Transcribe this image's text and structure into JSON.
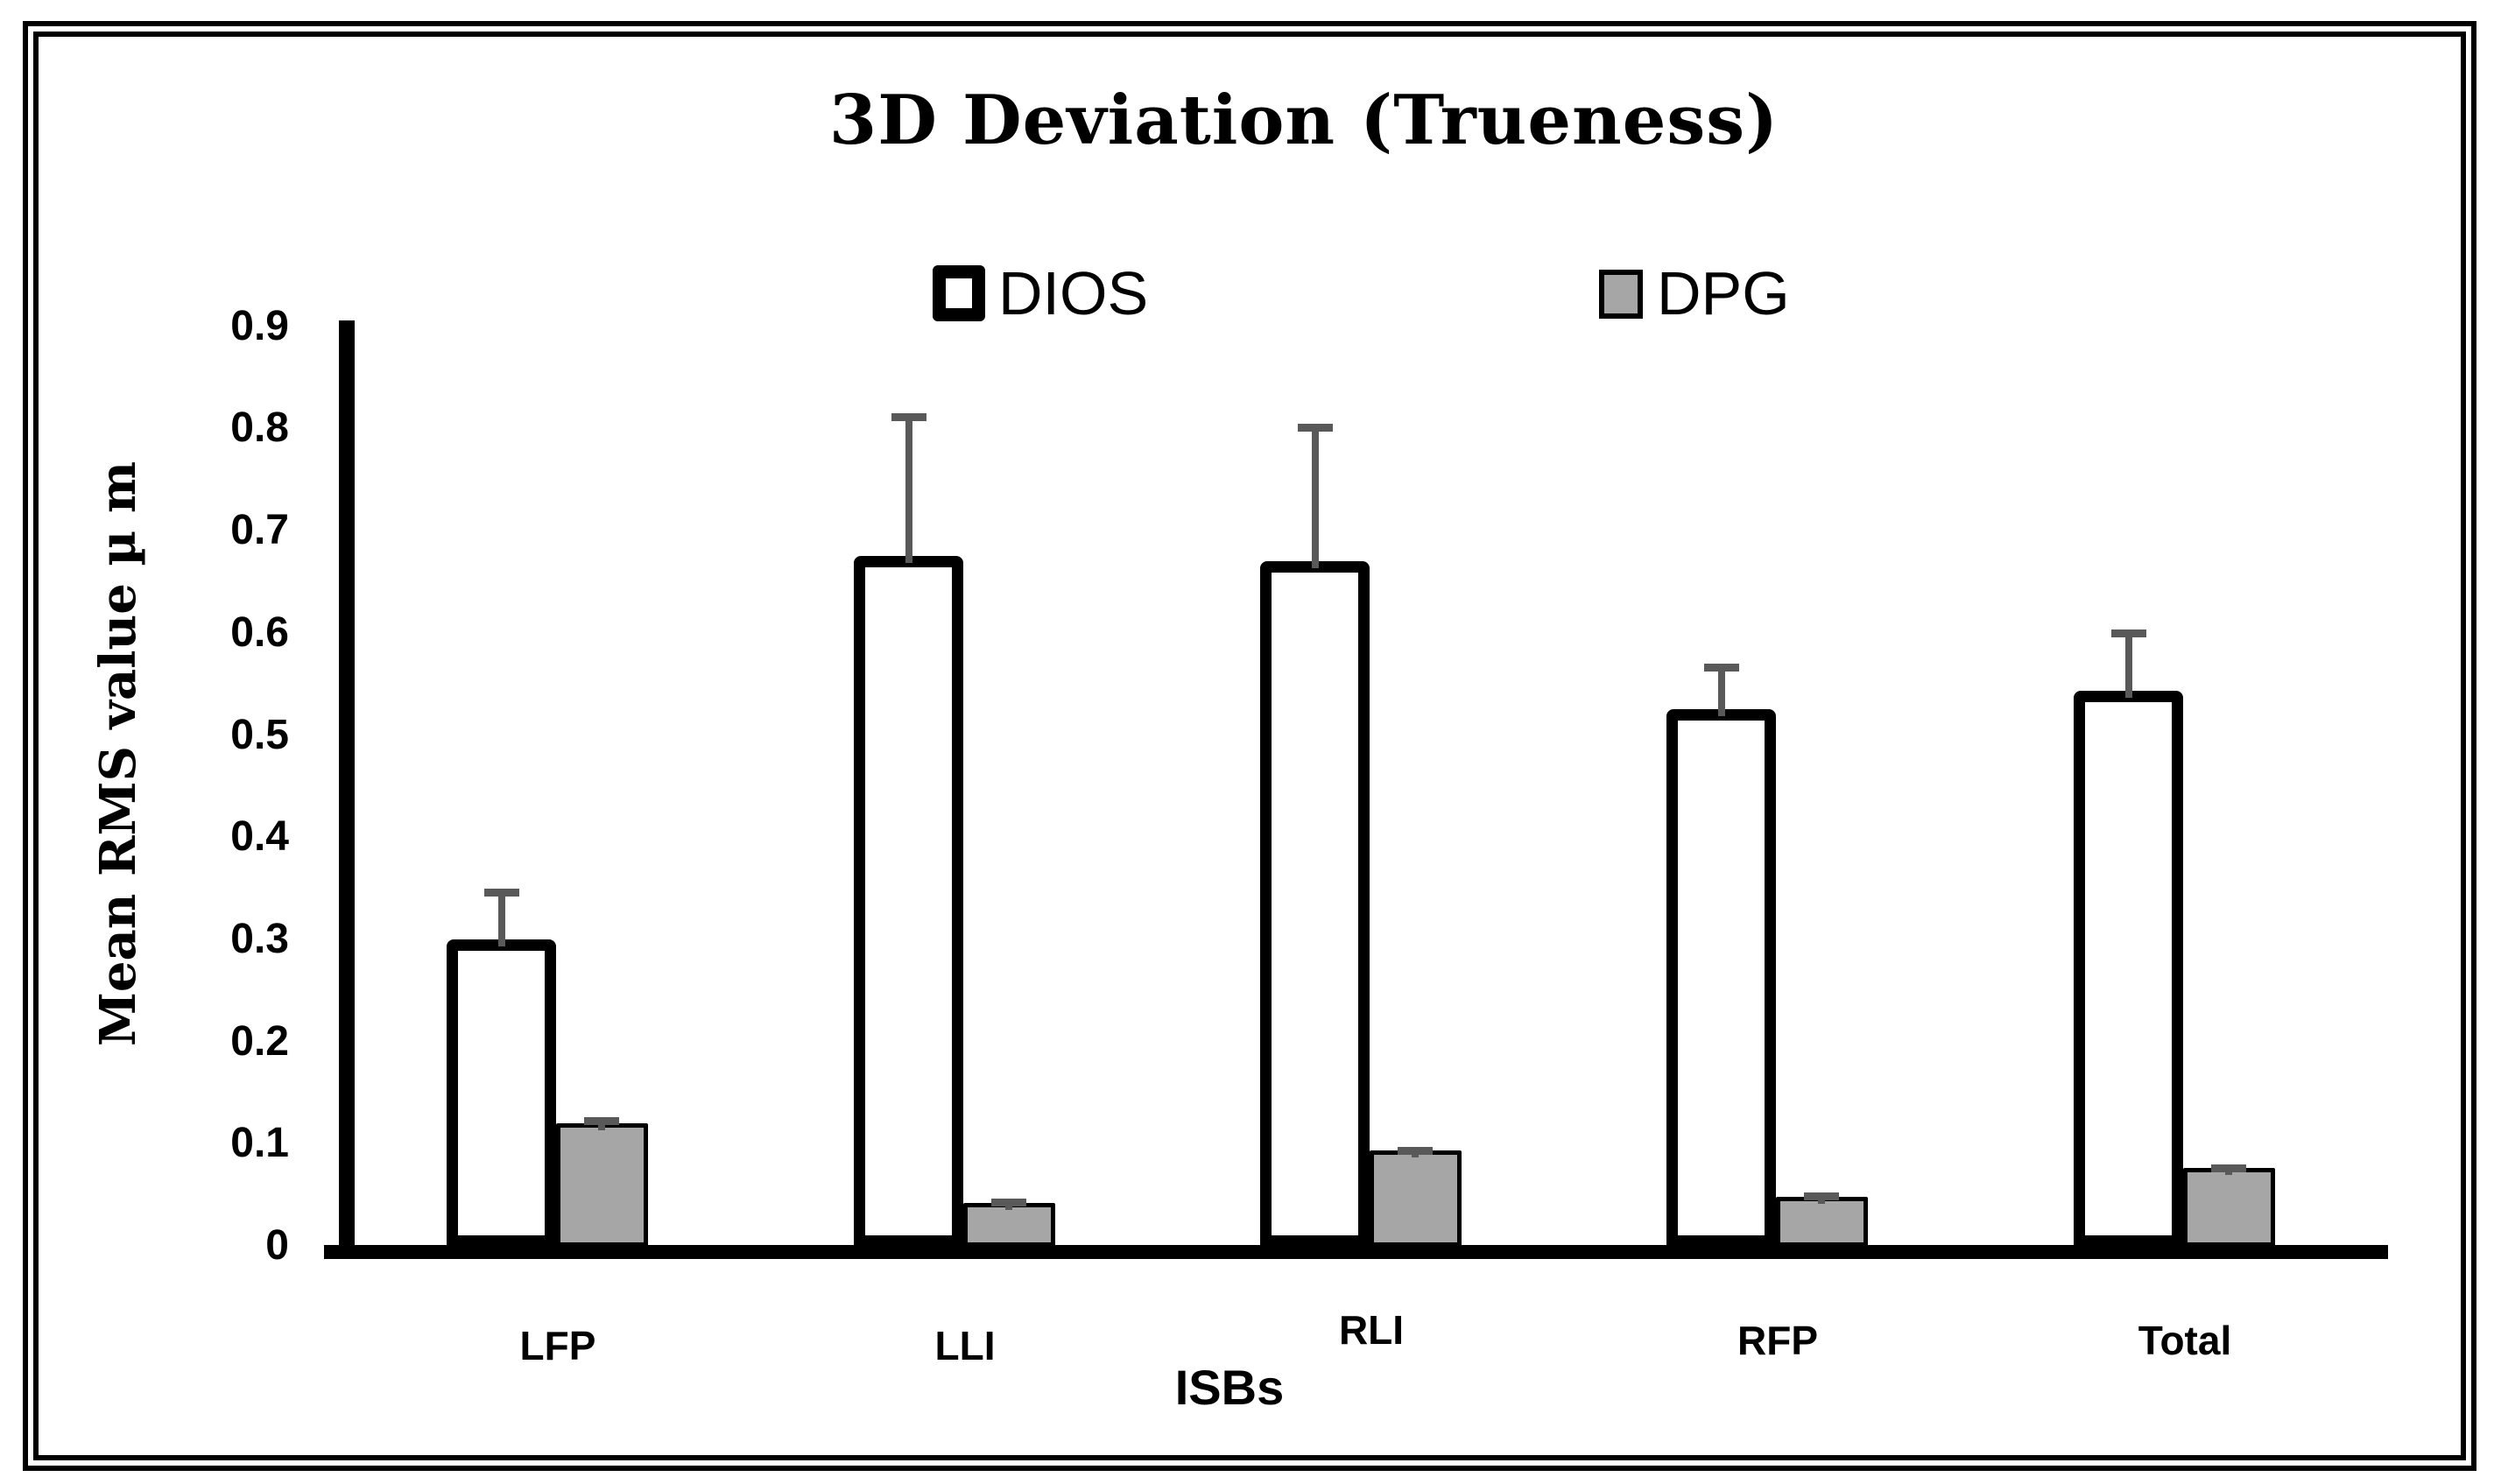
{
  "title": "3D Deviation (Trueness)",
  "legend": {
    "dios_label": "DIOS",
    "dpg_label": "DPG"
  },
  "y_axis": {
    "label": "Mean RMS value µ m",
    "ticks": [
      "0.9",
      "0.8",
      "0.7",
      "0.6",
      "0.5",
      "0.4",
      "0.3",
      "0.2",
      "0.1",
      "0"
    ]
  },
  "x_axis": {
    "label": "ISBs",
    "categories": [
      "LFP",
      "LLI",
      "RLI",
      "RFP",
      "Total"
    ]
  },
  "chart_data": {
    "type": "bar",
    "title": "3D Deviation (Trueness)",
    "xlabel": "ISBs",
    "ylabel": "Mean RMS value µ m",
    "categories": [
      "LFP",
      "LLI",
      "RLI",
      "RFP",
      "Total"
    ],
    "series": [
      {
        "name": "DIOS",
        "values": [
          0.3,
          0.675,
          0.67,
          0.525,
          0.543
        ],
        "sd_upper": [
          0.05,
          0.14,
          0.135,
          0.045,
          0.06
        ],
        "fill": "#ffffff",
        "border": "#000000"
      },
      {
        "name": "DPG",
        "values": [
          0.12,
          0.042,
          0.093,
          0.048,
          0.076
        ],
        "sd_upper": [
          0.006,
          0.004,
          0.004,
          0.004,
          0.004
        ],
        "fill": "#a6a6a6",
        "border": "#000000"
      }
    ],
    "ylim": [
      0,
      0.9
    ],
    "ytick_step": 0.1,
    "grid": false,
    "legend_position": "top-center",
    "error_bar_color": "#595959",
    "error_bars": "upper-only"
  }
}
